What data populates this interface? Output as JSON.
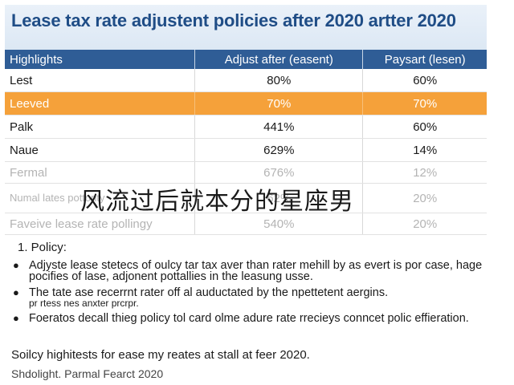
{
  "document": {
    "title": "Lease tax rate adjustent policies after 2020 artter 2020"
  },
  "table": {
    "headers": [
      "Highlights",
      "Adjust after (easent)",
      "Paysart (lesen)"
    ],
    "rows": [
      {
        "label": "Lest",
        "adjust": "80%",
        "paysart": "60%"
      },
      {
        "label": "Leeved",
        "adjust": "70%",
        "paysart": "70%"
      },
      {
        "label": "Palk",
        "adjust": "441%",
        "paysart": "60%"
      },
      {
        "label": "Naue",
        "adjust": "629%",
        "paysart": "14%"
      },
      {
        "label": "Fermal",
        "adjust": "676%",
        "paysart": "12%"
      },
      {
        "label": "Numal lates pottority",
        "adjust": "62%",
        "paysart": "20%"
      },
      {
        "label": "Faveive lease rate pollingy",
        "adjust": "540%",
        "paysart": "20%"
      }
    ]
  },
  "overlay_text": "风流过后就本分的星座男",
  "policy": {
    "heading": "1.  Policy:",
    "bullets": [
      {
        "text": "Adjyste lease stetecs of oulcy tar tax aver than rater mehill by as evert is por case, hage pocifies of lase, adjonent pottallies in the leasung usse.",
        "sub": ""
      },
      {
        "text": "The tate ase recerrnt rater off al auductated by the npettetent aergins.",
        "sub": "pr rtess nes anxter prcrpr."
      },
      {
        "text": "Foeratos decall thieg policy tol card olme adure rate rrecieys conncet polic effieration.",
        "sub": ""
      }
    ]
  },
  "summary": "Soilcy highitests for ease my reates at stall at feer 2020.",
  "footer": "Shdolight. Parmal Fearct 2020"
}
